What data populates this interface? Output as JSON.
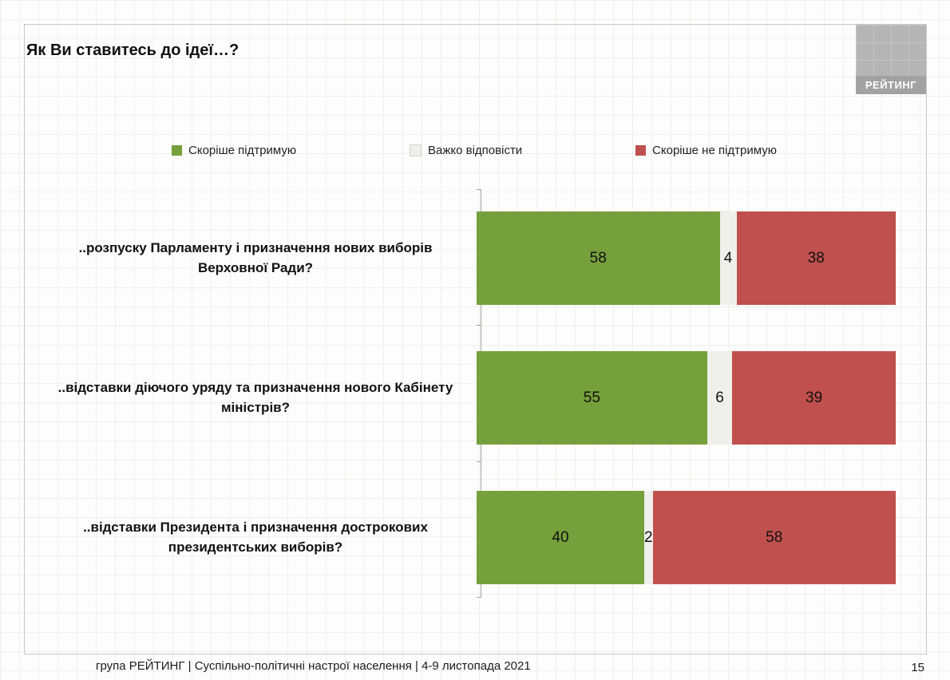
{
  "slide": {
    "title": "Як Ви ставитесь до ідеї…?",
    "logo_text": "РЕЙТИНГ",
    "footer": "група РЕЙТИНГ | Суспільно-політичні настрої населення  | 4-9 листопада 2021",
    "page_number": "15"
  },
  "chart_data": {
    "type": "bar",
    "orientation": "horizontal",
    "stacked": true,
    "title": "Як Ви ставитесь до ідеї…?",
    "categories": [
      "..розпуску Парламенту і призначення нових виборів Верховної Ради?",
      "..відставки діючого уряду та призначення нового Кабінету міністрів?",
      "..відставки Президента і призначення дострокових президентських виборів?"
    ],
    "series": [
      {
        "name": "Скоріше підтримую",
        "color": "#76a03c",
        "values": [
          58,
          55,
          40
        ]
      },
      {
        "name": "Важко відповісти",
        "color": "#efefec",
        "values": [
          4,
          6,
          2
        ]
      },
      {
        "name": "Скоріше не підтримую",
        "color": "#c0504d",
        "values": [
          38,
          39,
          58
        ]
      }
    ],
    "xlim": [
      0,
      100
    ],
    "legend_position": "top",
    "grid": false,
    "data_labels": true
  }
}
